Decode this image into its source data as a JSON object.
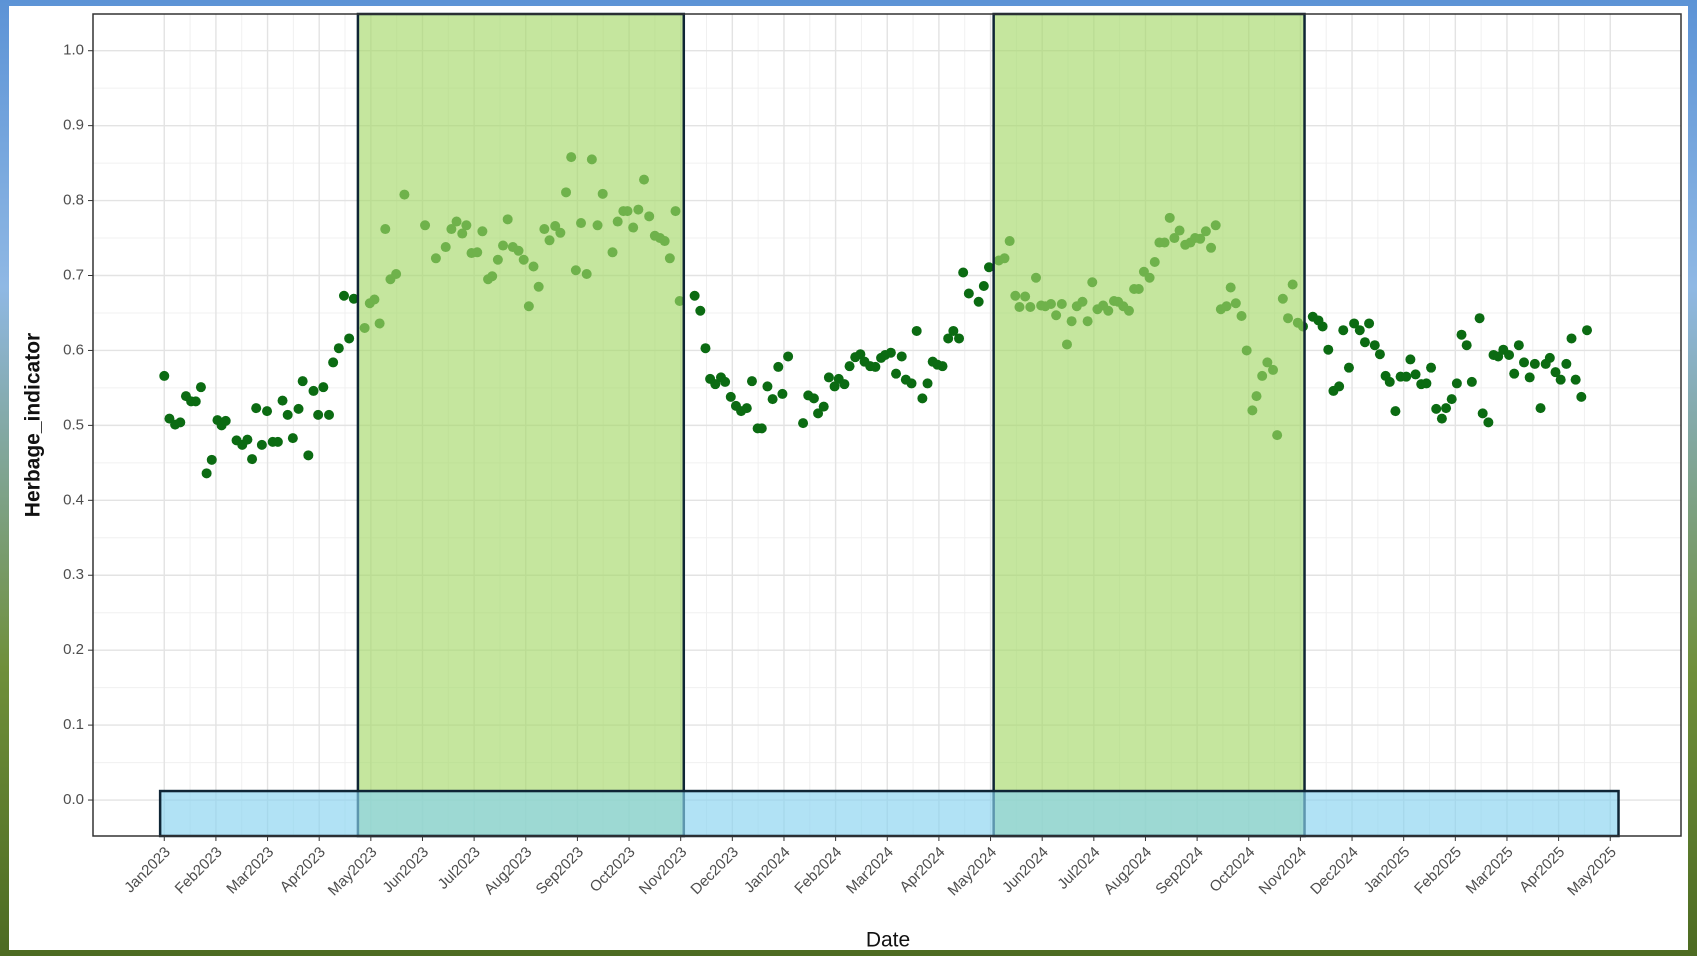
{
  "chart_data": {
    "type": "scatter",
    "x_label": "Date",
    "y_label": "Herbage_indicator",
    "color": "#0b6b12",
    "grid": true,
    "minor_grid": true,
    "xlim": [
      -1.38,
      29.37
    ],
    "ylim": [
      -0.048,
      1.049
    ],
    "xticks": [
      {
        "value": 0,
        "label": "Jan2023"
      },
      {
        "value": 1,
        "label": "Feb2023"
      },
      {
        "value": 2,
        "label": "Mar2023"
      },
      {
        "value": 3,
        "label": "Apr2023"
      },
      {
        "value": 4,
        "label": "May2023"
      },
      {
        "value": 5,
        "label": "Jun2023"
      },
      {
        "value": 6,
        "label": "Jul2023"
      },
      {
        "value": 7,
        "label": "Aug2023"
      },
      {
        "value": 8,
        "label": "Sep2023"
      },
      {
        "value": 9,
        "label": "Oct2023"
      },
      {
        "value": 10,
        "label": "Nov2023"
      },
      {
        "value": 11,
        "label": "Dec2023"
      },
      {
        "value": 12,
        "label": "Jan2024"
      },
      {
        "value": 13,
        "label": "Feb2024"
      },
      {
        "value": 14,
        "label": "Mar2024"
      },
      {
        "value": 15,
        "label": "Apr2024"
      },
      {
        "value": 16,
        "label": "May2024"
      },
      {
        "value": 17,
        "label": "Jun2024"
      },
      {
        "value": 18,
        "label": "Jul2024"
      },
      {
        "value": 19,
        "label": "Aug2024"
      },
      {
        "value": 20,
        "label": "Sep2024"
      },
      {
        "value": 21,
        "label": "Oct2024"
      },
      {
        "value": 22,
        "label": "Nov2024"
      },
      {
        "value": 23,
        "label": "Dec2024"
      },
      {
        "value": 24,
        "label": "Jan2025"
      },
      {
        "value": 25,
        "label": "Feb2025"
      },
      {
        "value": 26,
        "label": "Mar2025"
      },
      {
        "value": 27,
        "label": "Apr2025"
      },
      {
        "value": 28,
        "label": "May2025"
      }
    ],
    "yticks": [
      {
        "value": 0,
        "label": "0.0"
      },
      0.1,
      0.2,
      0.3,
      0.4,
      0.5,
      0.6,
      0.7,
      0.8,
      0.9,
      {
        "value": 1,
        "label": "1.0"
      }
    ],
    "regions": [
      {
        "xmin": 3.75,
        "xmax": 10.06,
        "color": "#a6d96a"
      },
      {
        "xmin": 16.06,
        "xmax": 22.08,
        "color": "#a6d96a"
      },
      {
        "xmin": -0.08,
        "xmax": 28.16,
        "ymin": -0.048,
        "ymax": 0.012,
        "color": "#87d3f0"
      }
    ],
    "x": [
      0.0,
      0.1,
      0.21,
      0.31,
      0.42,
      0.52,
      0.61,
      0.71,
      0.82,
      0.92,
      1.03,
      1.11,
      1.19,
      1.4,
      1.51,
      1.61,
      1.7,
      1.78,
      1.89,
      1.99,
      2.1,
      2.2,
      2.29,
      2.39,
      2.49,
      2.6,
      2.68,
      2.79,
      2.89,
      2.98,
      3.08,
      3.19,
      3.27,
      3.38,
      3.48,
      3.58,
      3.67,
      3.88,
      3.98,
      4.07,
      4.17,
      4.28,
      4.38,
      4.49,
      4.65,
      5.05,
      5.26,
      5.45,
      5.56,
      5.66,
      5.77,
      5.85,
      5.95,
      6.06,
      6.16,
      6.27,
      6.35,
      6.46,
      6.56,
      6.65,
      6.75,
      6.86,
      6.96,
      7.06,
      7.15,
      7.25,
      7.36,
      7.46,
      7.57,
      7.67,
      7.78,
      7.88,
      7.97,
      8.07,
      8.18,
      8.28,
      8.39,
      8.49,
      8.68,
      8.78,
      8.89,
      8.97,
      9.08,
      9.18,
      9.29,
      9.39,
      9.5,
      9.6,
      9.69,
      9.79,
      9.9,
      9.98,
      10.27,
      10.38,
      10.48,
      10.57,
      10.67,
      10.78,
      10.86,
      10.97,
      11.07,
      11.17,
      11.28,
      11.38,
      11.49,
      11.57,
      11.68,
      11.78,
      11.89,
      11.97,
      12.08,
      12.37,
      12.47,
      12.58,
      12.66,
      12.77,
      12.87,
      12.98,
      13.06,
      13.17,
      13.27,
      13.38,
      13.48,
      13.56,
      13.67,
      13.77,
      13.88,
      13.96,
      14.07,
      14.17,
      14.28,
      14.36,
      14.47,
      14.57,
      14.68,
      14.78,
      14.88,
      14.97,
      15.07,
      15.18,
      15.28,
      15.39,
      15.47,
      15.58,
      15.77,
      15.87,
      15.97,
      16.16,
      16.27,
      16.37,
      16.48,
      16.56,
      16.67,
      16.77,
      16.88,
      16.98,
      17.06,
      17.17,
      17.27,
      17.38,
      17.48,
      17.57,
      17.67,
      17.78,
      17.88,
      17.97,
      18.07,
      18.18,
      18.28,
      18.39,
      18.47,
      18.57,
      18.68,
      18.78,
      18.87,
      18.97,
      19.08,
      19.18,
      19.27,
      19.37,
      19.47,
      19.56,
      19.66,
      19.77,
      19.87,
      19.96,
      20.06,
      20.17,
      20.27,
      20.36,
      20.46,
      20.57,
      20.65,
      20.75,
      20.86,
      20.96,
      21.07,
      21.15,
      21.26,
      21.36,
      21.47,
      21.55,
      21.66,
      21.76,
      21.85,
      21.95,
      22.05,
      22.24,
      22.35,
      22.43,
      22.54,
      22.64,
      22.75,
      22.83,
      22.94,
      23.04,
      23.15,
      23.25,
      23.33,
      23.44,
      23.54,
      23.65,
      23.73,
      23.84,
      23.94,
      24.05,
      24.13,
      24.23,
      24.34,
      24.44,
      24.53,
      24.63,
      24.74,
      24.82,
      24.93,
      25.03,
      25.12,
      25.22,
      25.32,
      25.47,
      25.53,
      25.64,
      25.74,
      25.83,
      25.93,
      26.04,
      26.14,
      26.23,
      26.33,
      26.44,
      26.54,
      26.65,
      26.75,
      26.83,
      26.94,
      27.04,
      27.15,
      27.25,
      27.33,
      27.44,
      27.55
    ],
    "values": [
      0.566,
      0.509,
      0.501,
      0.504,
      0.539,
      0.532,
      0.532,
      0.551,
      0.436,
      0.454,
      0.507,
      0.5,
      0.506,
      0.48,
      0.474,
      0.481,
      0.455,
      0.523,
      0.474,
      0.519,
      0.478,
      0.478,
      0.533,
      0.514,
      0.483,
      0.522,
      0.559,
      0.46,
      0.546,
      0.514,
      0.551,
      0.514,
      0.584,
      0.603,
      0.673,
      0.616,
      0.669,
      0.63,
      0.663,
      0.668,
      0.636,
      0.762,
      0.695,
      0.702,
      0.808,
      0.767,
      0.723,
      0.738,
      0.762,
      0.772,
      0.756,
      0.767,
      0.73,
      0.731,
      0.759,
      0.695,
      0.699,
      0.721,
      0.74,
      0.775,
      0.738,
      0.733,
      0.721,
      0.659,
      0.712,
      0.685,
      0.762,
      0.747,
      0.766,
      0.757,
      0.811,
      0.858,
      0.707,
      0.77,
      0.702,
      0.855,
      0.767,
      0.809,
      0.731,
      0.772,
      0.786,
      0.786,
      0.764,
      0.788,
      0.828,
      0.779,
      0.753,
      0.75,
      0.746,
      0.723,
      0.786,
      0.666,
      0.673,
      0.653,
      0.603,
      0.562,
      0.555,
      0.564,
      0.558,
      0.538,
      0.526,
      0.519,
      0.523,
      0.559,
      0.496,
      0.496,
      0.552,
      0.535,
      0.578,
      0.542,
      0.592,
      0.503,
      0.54,
      0.536,
      0.516,
      0.525,
      0.564,
      0.552,
      0.562,
      0.555,
      0.579,
      0.591,
      0.595,
      0.585,
      0.579,
      0.578,
      0.59,
      0.594,
      0.597,
      0.569,
      0.592,
      0.561,
      0.556,
      0.626,
      0.536,
      0.556,
      0.585,
      0.581,
      0.579,
      0.616,
      0.626,
      0.616,
      0.704,
      0.676,
      0.665,
      0.686,
      0.711,
      0.72,
      0.723,
      0.746,
      0.673,
      0.658,
      0.672,
      0.658,
      0.697,
      0.66,
      0.659,
      0.662,
      0.647,
      0.662,
      0.608,
      0.639,
      0.659,
      0.665,
      0.639,
      0.691,
      0.655,
      0.66,
      0.653,
      0.666,
      0.665,
      0.659,
      0.653,
      0.682,
      0.682,
      0.705,
      0.697,
      0.718,
      0.744,
      0.744,
      0.777,
      0.75,
      0.76,
      0.741,
      0.744,
      0.75,
      0.749,
      0.759,
      0.737,
      0.767,
      0.655,
      0.659,
      0.684,
      0.663,
      0.646,
      0.6,
      0.52,
      0.539,
      0.566,
      0.584,
      0.574,
      0.487,
      0.669,
      0.643,
      0.688,
      0.637,
      0.632,
      0.645,
      0.64,
      0.632,
      0.601,
      0.546,
      0.552,
      0.627,
      0.577,
      0.636,
      0.627,
      0.611,
      0.636,
      0.607,
      0.595,
      0.566,
      0.558,
      0.519,
      0.565,
      0.565,
      0.588,
      0.568,
      0.555,
      0.556,
      0.577,
      0.522,
      0.509,
      0.523,
      0.535,
      0.556,
      0.621,
      0.607,
      0.558,
      0.643,
      0.516,
      0.504,
      0.594,
      0.592,
      0.601,
      0.594,
      0.569,
      0.607,
      0.584,
      0.564,
      0.582,
      0.523,
      0.582,
      0.59,
      0.571,
      0.561,
      0.582,
      0.616,
      0.561,
      0.538,
      0.627
    ]
  }
}
